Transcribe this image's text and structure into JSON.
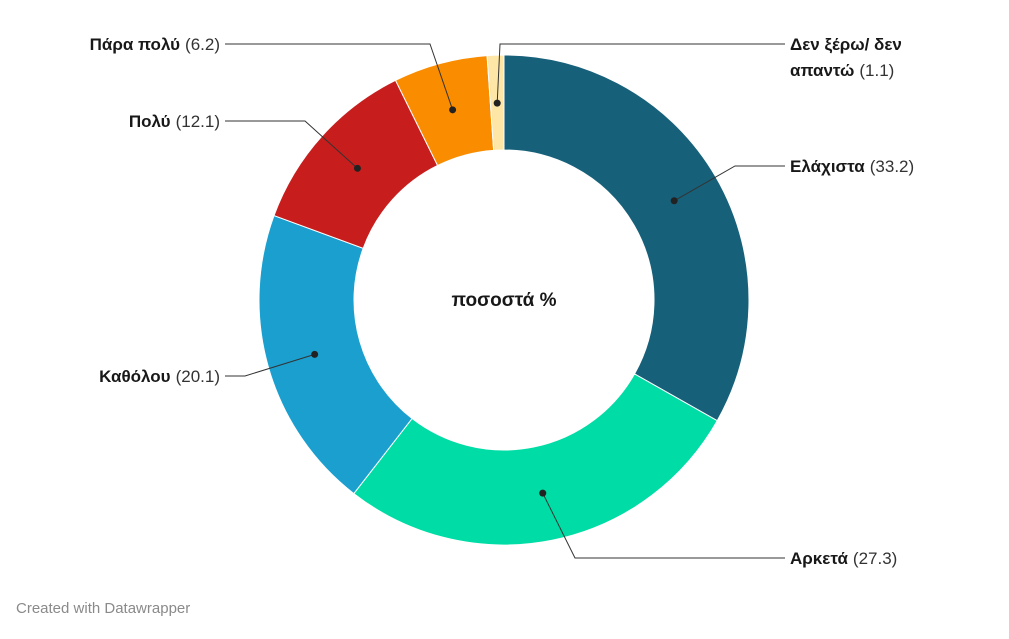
{
  "chart_data": {
    "type": "pie",
    "center_label": "ποσοστά %",
    "slices": [
      {
        "name": "Ελάχιστα",
        "value": 33.2,
        "value_label": "(33.2)",
        "color": "#17607a"
      },
      {
        "name": "Αρκετά",
        "value": 27.3,
        "value_label": "(27.3)",
        "color": "#00dca5"
      },
      {
        "name": "Καθόλου",
        "value": 20.1,
        "value_label": "(20.1)",
        "color": "#1a9fcf"
      },
      {
        "name": "Πολύ",
        "value": 12.1,
        "value_label": "(12.1)",
        "color": "#c71e1d"
      },
      {
        "name": "Πάρα πολύ",
        "value": 6.2,
        "value_label": "(6.2)",
        "color": "#fa8c00"
      },
      {
        "name": "Δεν ξέρω/ δεν απαντώ",
        "name_lines": [
          "Δεν ξέρω/ δεν",
          "απαντώ"
        ],
        "value": 1.1,
        "value_label": "(1.1)",
        "color": "#fde6a6"
      }
    ]
  },
  "footer": "Created with Datawrapper"
}
